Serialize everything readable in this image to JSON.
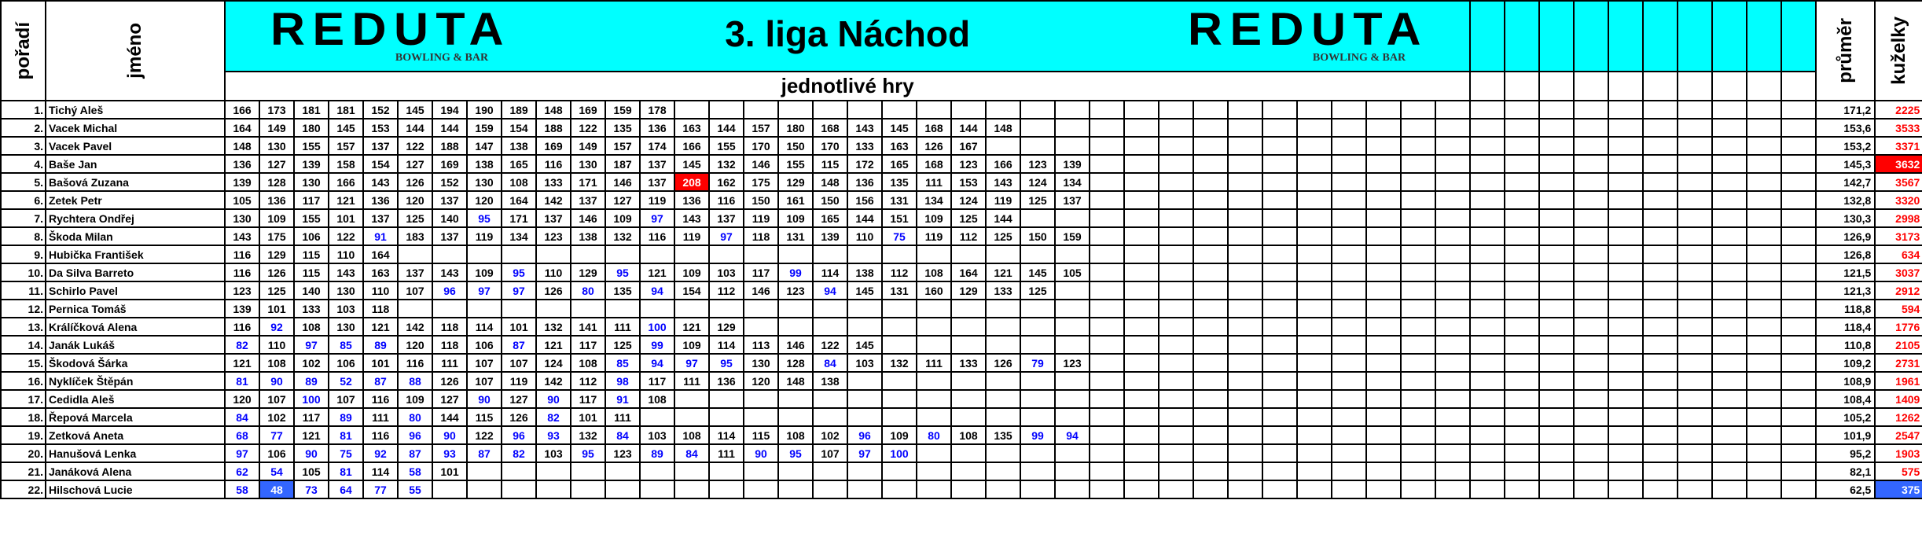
{
  "header": {
    "rank_label": "pořadí",
    "name_label": "jméno",
    "logo_text": "REDUTA",
    "logo_subtext": "BOWLING & BAR",
    "title": "3. liga Náchod",
    "subtitle": "jednotlivé hry",
    "average_label": "průměr",
    "pins_label": "kuželky"
  },
  "colors": {
    "header_bg": "#00ffff",
    "low_score_text": "#0000ff",
    "pins_text": "#ff0000",
    "max_highlight_bg": "#ff0000",
    "min_highlight_bg": "#3366ff",
    "highlight_text": "#ffffff"
  },
  "players": [
    {
      "rank": "1.",
      "name": "Tichý Aleš",
      "avg": "171,2",
      "pins": "2225",
      "games": [
        166,
        173,
        181,
        181,
        152,
        145,
        194,
        190,
        189,
        148,
        169,
        159,
        178
      ]
    },
    {
      "rank": "2.",
      "name": "Vacek Michal",
      "avg": "153,6",
      "pins": "3533",
      "games": [
        164,
        149,
        180,
        145,
        153,
        144,
        144,
        159,
        154,
        188,
        122,
        135,
        136,
        163,
        144,
        157,
        180,
        168,
        143,
        145,
        168,
        144,
        148
      ]
    },
    {
      "rank": "3.",
      "name": "Vacek Pavel",
      "avg": "153,2",
      "pins": "3371",
      "games": [
        148,
        130,
        155,
        157,
        137,
        122,
        188,
        147,
        138,
        169,
        149,
        157,
        174,
        166,
        155,
        170,
        150,
        170,
        133,
        163,
        126,
        167
      ]
    },
    {
      "rank": "4.",
      "name": "Baše Jan",
      "avg": "145,3",
      "pins": "3632",
      "pins_highlight": "max",
      "games": [
        136,
        127,
        139,
        158,
        154,
        127,
        169,
        138,
        165,
        116,
        130,
        187,
        137,
        145,
        132,
        146,
        155,
        115,
        172,
        165,
        168,
        123,
        166,
        123,
        139
      ]
    },
    {
      "rank": "5.",
      "name": "Bašová Zuzana",
      "avg": "142,7",
      "pins": "3567",
      "highlight_game": {
        "index": 13,
        "type": "max"
      },
      "games": [
        139,
        128,
        130,
        166,
        143,
        126,
        152,
        130,
        108,
        133,
        171,
        146,
        137,
        208,
        162,
        175,
        129,
        148,
        136,
        135,
        111,
        153,
        143,
        124,
        134
      ]
    },
    {
      "rank": "6.",
      "name": "Zetek Petr",
      "avg": "132,8",
      "pins": "3320",
      "games": [
        105,
        136,
        117,
        121,
        136,
        120,
        137,
        120,
        164,
        142,
        137,
        127,
        119,
        136,
        116,
        150,
        161,
        150,
        156,
        131,
        134,
        124,
        119,
        125,
        137
      ]
    },
    {
      "rank": "7.",
      "name": "Rychtera Ondřej",
      "avg": "130,3",
      "pins": "2998",
      "games": [
        130,
        109,
        155,
        101,
        137,
        125,
        140,
        95,
        171,
        137,
        146,
        109,
        97,
        143,
        137,
        119,
        109,
        165,
        144,
        151,
        109,
        125,
        144
      ]
    },
    {
      "rank": "8.",
      "name": "Škoda Milan",
      "avg": "126,9",
      "pins": "3173",
      "games": [
        143,
        175,
        106,
        122,
        91,
        183,
        137,
        119,
        134,
        123,
        138,
        132,
        116,
        119,
        97,
        118,
        131,
        139,
        110,
        75,
        119,
        112,
        125,
        150,
        159
      ]
    },
    {
      "rank": "9.",
      "name": "Hubička František",
      "avg": "126,8",
      "pins": "634",
      "games": [
        116,
        129,
        115,
        110,
        164
      ]
    },
    {
      "rank": "10.",
      "name": "Da Silva Barreto",
      "avg": "121,5",
      "pins": "3037",
      "games": [
        116,
        126,
        115,
        143,
        163,
        137,
        143,
        109,
        95,
        110,
        129,
        95,
        121,
        109,
        103,
        117,
        99,
        114,
        138,
        112,
        108,
        164,
        121,
        145,
        105
      ]
    },
    {
      "rank": "11.",
      "name": "Schirlo Pavel",
      "avg": "121,3",
      "pins": "2912",
      "games": [
        123,
        125,
        140,
        130,
        110,
        107,
        96,
        97,
        97,
        126,
        80,
        135,
        94,
        154,
        112,
        146,
        123,
        94,
        145,
        131,
        160,
        129,
        133,
        125
      ]
    },
    {
      "rank": "12.",
      "name": "Pernica Tomáš",
      "avg": "118,8",
      "pins": "594",
      "games": [
        139,
        101,
        133,
        103,
        118
      ]
    },
    {
      "rank": "13.",
      "name": "Králíčková Alena",
      "avg": "118,4",
      "pins": "1776",
      "games": [
        116,
        92,
        108,
        130,
        121,
        142,
        118,
        114,
        101,
        132,
        141,
        111,
        100,
        121,
        129
      ]
    },
    {
      "rank": "14.",
      "name": "Janák Lukáš",
      "avg": "110,8",
      "pins": "2105",
      "games": [
        82,
        110,
        97,
        85,
        89,
        120,
        118,
        106,
        87,
        121,
        117,
        125,
        99,
        109,
        114,
        113,
        146,
        122,
        145
      ]
    },
    {
      "rank": "15.",
      "name": "Škodová Šárka",
      "avg": "109,2",
      "pins": "2731",
      "games": [
        121,
        108,
        102,
        106,
        101,
        116,
        111,
        107,
        107,
        124,
        108,
        85,
        94,
        97,
        95,
        130,
        128,
        84,
        103,
        132,
        111,
        133,
        126,
        79,
        123
      ]
    },
    {
      "rank": "16.",
      "name": "Nyklíček Štěpán",
      "avg": "108,9",
      "pins": "1961",
      "games": [
        81,
        90,
        89,
        52,
        87,
        88,
        126,
        107,
        119,
        142,
        112,
        98,
        117,
        111,
        136,
        120,
        148,
        138
      ]
    },
    {
      "rank": "17.",
      "name": "Cedidla Aleš",
      "avg": "108,4",
      "pins": "1409",
      "games": [
        120,
        107,
        100,
        107,
        116,
        109,
        127,
        90,
        127,
        90,
        117,
        91,
        108
      ]
    },
    {
      "rank": "18.",
      "name": "Řepová Marcela",
      "avg": "105,2",
      "pins": "1262",
      "games": [
        84,
        102,
        117,
        89,
        111,
        80,
        144,
        115,
        126,
        82,
        101,
        111
      ]
    },
    {
      "rank": "19.",
      "name": "Zetková Aneta",
      "avg": "101,9",
      "pins": "2547",
      "games": [
        68,
        77,
        121,
        81,
        116,
        96,
        90,
        122,
        96,
        93,
        132,
        84,
        103,
        108,
        114,
        115,
        108,
        102,
        96,
        109,
        80,
        108,
        135,
        99,
        94
      ]
    },
    {
      "rank": "20.",
      "name": "Hanušová Lenka",
      "avg": "95,2",
      "pins": "1903",
      "games": [
        97,
        106,
        90,
        75,
        92,
        87,
        93,
        87,
        82,
        103,
        95,
        123,
        89,
        84,
        111,
        90,
        95,
        107,
        97,
        100
      ]
    },
    {
      "rank": "21.",
      "name": "Janáková Alena",
      "avg": "82,1",
      "pins": "575",
      "games": [
        62,
        54,
        105,
        81,
        114,
        58,
        101
      ]
    },
    {
      "rank": "22.",
      "name": "Hilschová Lucie",
      "avg": "62,5",
      "pins": "375",
      "pins_highlight": "min",
      "highlight_game": {
        "index": 1,
        "type": "min"
      },
      "games": [
        58,
        48,
        73,
        64,
        77,
        55
      ]
    }
  ]
}
